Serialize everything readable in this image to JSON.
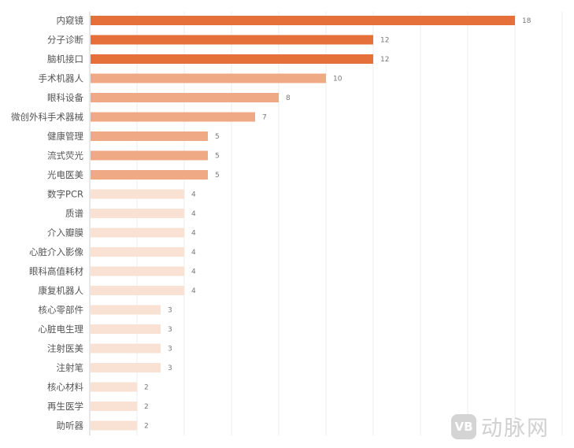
{
  "chart_data": {
    "type": "bar",
    "orientation": "horizontal",
    "categories": [
      "内窥镜",
      "分子诊断",
      "脑机接口",
      "手术机器人",
      "眼科设备",
      "微创外科手术器械",
      "健康管理",
      "流式荧光",
      "光电医美",
      "数字PCR",
      "质谱",
      "介入瓣膜",
      "心脏介入影像",
      "眼科高值耗材",
      "康复机器人",
      "核心零部件",
      "心脏电生理",
      "注射医美",
      "注射笔",
      "核心材料",
      "再生医学",
      "助听器"
    ],
    "values": [
      18,
      12,
      12,
      10,
      8,
      7,
      5,
      5,
      5,
      4,
      4,
      4,
      4,
      4,
      4,
      3,
      3,
      3,
      3,
      2,
      2,
      2
    ],
    "xlim": [
      0,
      20
    ],
    "grid": true,
    "data_labels": true,
    "colors": {
      "high": "#E5703A",
      "mid": "#EFA985",
      "low": "#F9E1D4"
    },
    "title": "",
    "xlabel": "",
    "ylabel": ""
  },
  "watermark": {
    "mark": "VB",
    "text": "动脉网"
  }
}
